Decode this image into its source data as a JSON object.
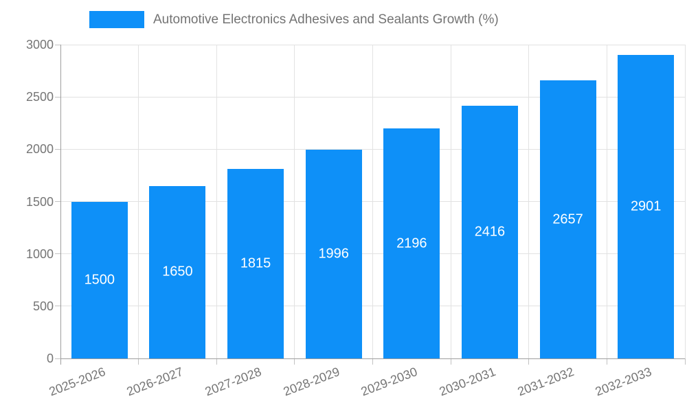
{
  "chart_data": {
    "type": "bar",
    "title": "Automotive Electronics Adhesives and Sealants Growth (%)",
    "legend_label": "Automotive Electronics Adhesives and Sealants Growth (%)",
    "categories": [
      "2025-2026",
      "2026-2027",
      "2027-2028",
      "2028-2029",
      "2029-2030",
      "2030-2031",
      "2031-2032",
      "2032-2033"
    ],
    "values": [
      1500,
      1650,
      1815,
      1996,
      2196,
      2416,
      2657,
      2901
    ],
    "xlabel": "",
    "ylabel": "",
    "ylim": [
      0,
      3000
    ],
    "y_ticks": [
      0,
      500,
      1000,
      1500,
      2000,
      2500,
      3000
    ],
    "grid": "horizontal and vertical gridlines on",
    "legend_position": "top",
    "bar_label_position": "center"
  },
  "colors": {
    "bar": "#0e90f8",
    "bar_label": "#ffffff",
    "axis_text": "#757575",
    "title_text": "#737373",
    "gridline": "#e2e2e2",
    "axis_line": "#9e9e9e",
    "tick_mark": "#c2c2c2",
    "background": "#ffffff"
  }
}
